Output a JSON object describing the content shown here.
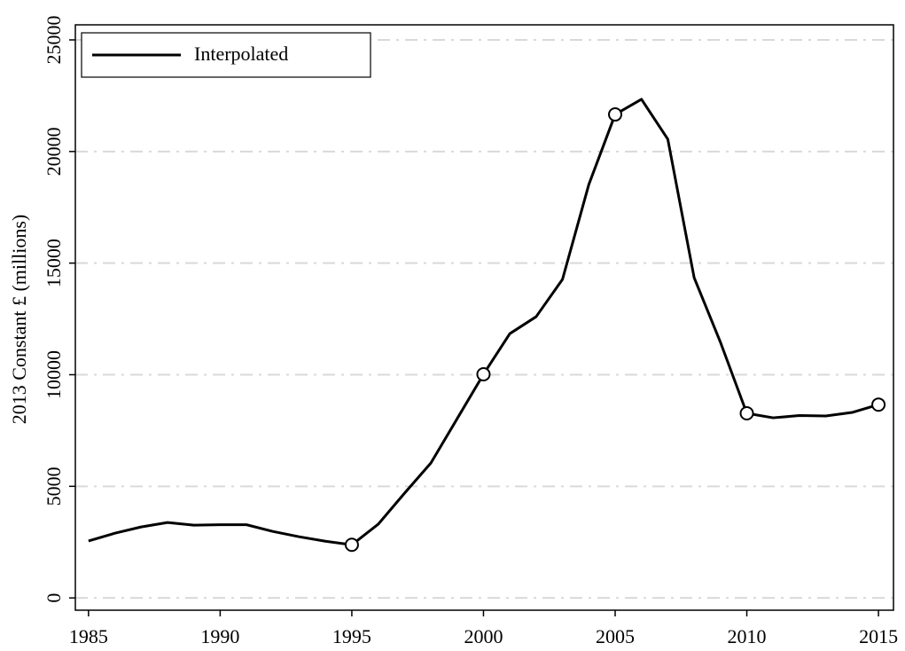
{
  "chart_data": {
    "type": "line",
    "y_label": "2013 Constant £ (millions)",
    "x": [
      1985,
      1986,
      1987,
      1988,
      1989,
      1990,
      1991,
      1992,
      1993,
      1994,
      1995,
      1996,
      1997,
      1998,
      1999,
      2000,
      2001,
      2002,
      2003,
      2004,
      2005,
      2006,
      2007,
      2008,
      2009,
      2010,
      2011,
      2012,
      2013,
      2014,
      2015
    ],
    "series": [
      {
        "name": "Interpolated",
        "color": "#000000",
        "values": [
          2550,
          2900,
          3180,
          3380,
          3260,
          3280,
          3280,
          2980,
          2740,
          2540,
          2380,
          3300,
          4690,
          6040,
          8030,
          10020,
          11840,
          12600,
          14270,
          18520,
          21660,
          22340,
          20550,
          14350,
          11450,
          8270,
          8070,
          8170,
          8150,
          8310,
          8660
        ]
      }
    ],
    "marked_x": [
      1995,
      2000,
      2005,
      2010,
      2015
    ],
    "xlim": [
      1984.5,
      2015.57
    ],
    "xticks": [
      1985,
      1990,
      1995,
      2000,
      2005,
      2010,
      2015
    ],
    "ylim": [
      -550,
      25675
    ],
    "yticks": [
      0,
      5000,
      10000,
      15000,
      20000,
      25000
    ],
    "grid": true,
    "legend": "upper left"
  }
}
